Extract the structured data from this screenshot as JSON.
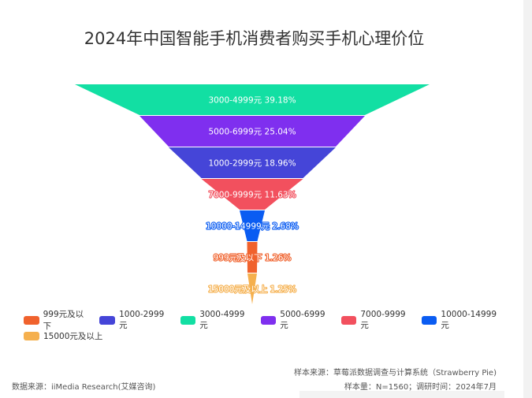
{
  "title": "2024年中国智能手机消费者购买手机心理价位",
  "chart_data": {
    "type": "funnel",
    "title": "2024年中国智能手机消费者购买手机心理价位",
    "unit": "%",
    "sort": "descending",
    "segments": [
      {
        "name": "3000-4999元",
        "value": 39.18,
        "label": "3000-4999元 39.18%",
        "color": "#12DFA3"
      },
      {
        "name": "5000-6999元",
        "value": 25.04,
        "label": "5000-6999元 25.04%",
        "color": "#7F2FEF"
      },
      {
        "name": "1000-2999元",
        "value": 18.96,
        "label": "1000-2999元 18.96%",
        "color": "#4545D8"
      },
      {
        "name": "7000-9999元",
        "value": 11.63,
        "label": "7000-9999元 11.63%",
        "color": "#F2505E"
      },
      {
        "name": "10000-14999元",
        "value": 2.68,
        "label": "10000-14999元 2.68%",
        "color": "#0A5CF2"
      },
      {
        "name": "999元及以下",
        "value": 1.26,
        "label": "999元及以下 1.26%",
        "color": "#F0622D"
      },
      {
        "name": "15000元及以上",
        "value": 1.25,
        "label": "15000元及以上 1.25%",
        "color": "#F5B04E"
      }
    ],
    "legend_position": "bottom-left"
  },
  "legend": {
    "row1": [
      {
        "label": "999元及以下",
        "color": "#F0622D"
      },
      {
        "label": "1000-2999元",
        "color": "#4545D8"
      },
      {
        "label": "3000-4999元",
        "color": "#12DFA3"
      },
      {
        "label": "5000-6999元",
        "color": "#7F2FEF"
      },
      {
        "label": "7000-9999元",
        "color": "#F2505E"
      },
      {
        "label": "10000-14999元",
        "color": "#0A5CF2"
      }
    ],
    "row2": [
      {
        "label": "15000元及以上",
        "color": "#F5B04E"
      }
    ]
  },
  "footer": {
    "data_source": "数据来源：iiMedia Research(艾媒咨询)",
    "sample_source": "样本来源：草莓派数据调查与计算系统（Strawberry Pie)",
    "sample_info": "样本量：N=1560；调研时间：2024年7月"
  }
}
